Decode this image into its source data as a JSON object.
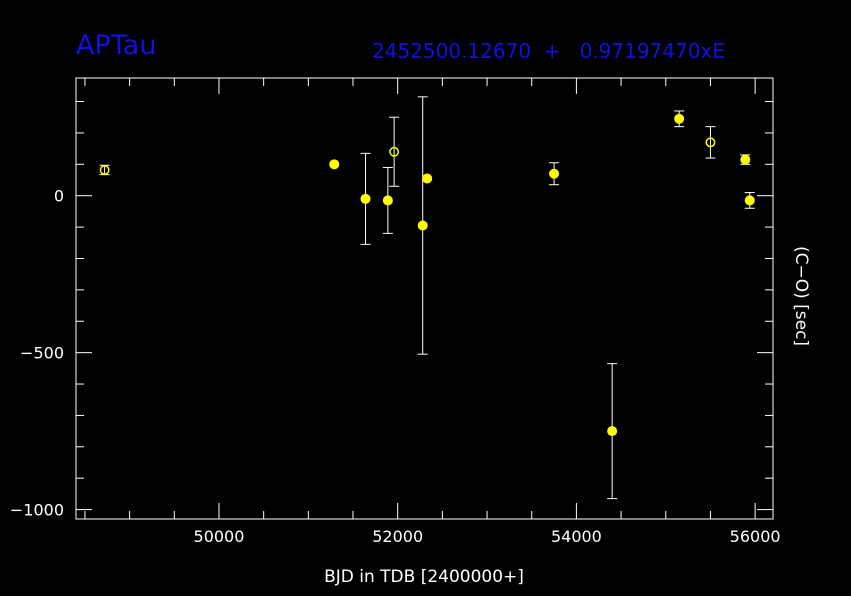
{
  "header": {
    "star_name": "APTau",
    "ephemeris": "2452500.12670  +   0.97197470xE"
  },
  "colors": {
    "background": "#000000",
    "axes": "#ffffff",
    "title": "#1010e0",
    "points": "#ffff00"
  },
  "chart_data": {
    "type": "scatter",
    "title": "APTau",
    "subtitle": "2452500.12670  +   0.97197470xE",
    "xlabel": "BJD in TDB [2400000+]",
    "ylabel": "(C−O) [sec]",
    "xlim": [
      48400,
      56200
    ],
    "ylim": [
      -1030,
      375
    ],
    "xticks": [
      50000,
      52000,
      54000,
      56000
    ],
    "xtick_labels": [
      "50000",
      "52000",
      "54000",
      "56000"
    ],
    "yticks": [
      -1000,
      -500,
      0
    ],
    "ytick_labels": [
      "−1000",
      "−500",
      "0"
    ],
    "grid": false,
    "legend": "none",
    "series": [
      {
        "marker": "filled-circle",
        "points": [
          {
            "x": 51290,
            "y": 100,
            "err": 0
          },
          {
            "x": 51640,
            "y": -10,
            "err": 145
          },
          {
            "x": 51890,
            "y": -15,
            "err": 105
          },
          {
            "x": 52280,
            "y": -95,
            "err": 410
          },
          {
            "x": 52330,
            "y": 55,
            "err": 0
          },
          {
            "x": 53750,
            "y": 70,
            "err": 35
          },
          {
            "x": 54400,
            "y": -750,
            "err": 215
          },
          {
            "x": 55150,
            "y": 245,
            "err": 25
          },
          {
            "x": 55890,
            "y": 115,
            "err": 15
          },
          {
            "x": 55940,
            "y": -15,
            "err": 25
          }
        ]
      },
      {
        "marker": "open-circle",
        "points": [
          {
            "x": 48720,
            "y": 82,
            "err": 15
          },
          {
            "x": 51960,
            "y": 140,
            "err": 110
          },
          {
            "x": 55500,
            "y": 170,
            "err": 50
          }
        ]
      }
    ]
  }
}
